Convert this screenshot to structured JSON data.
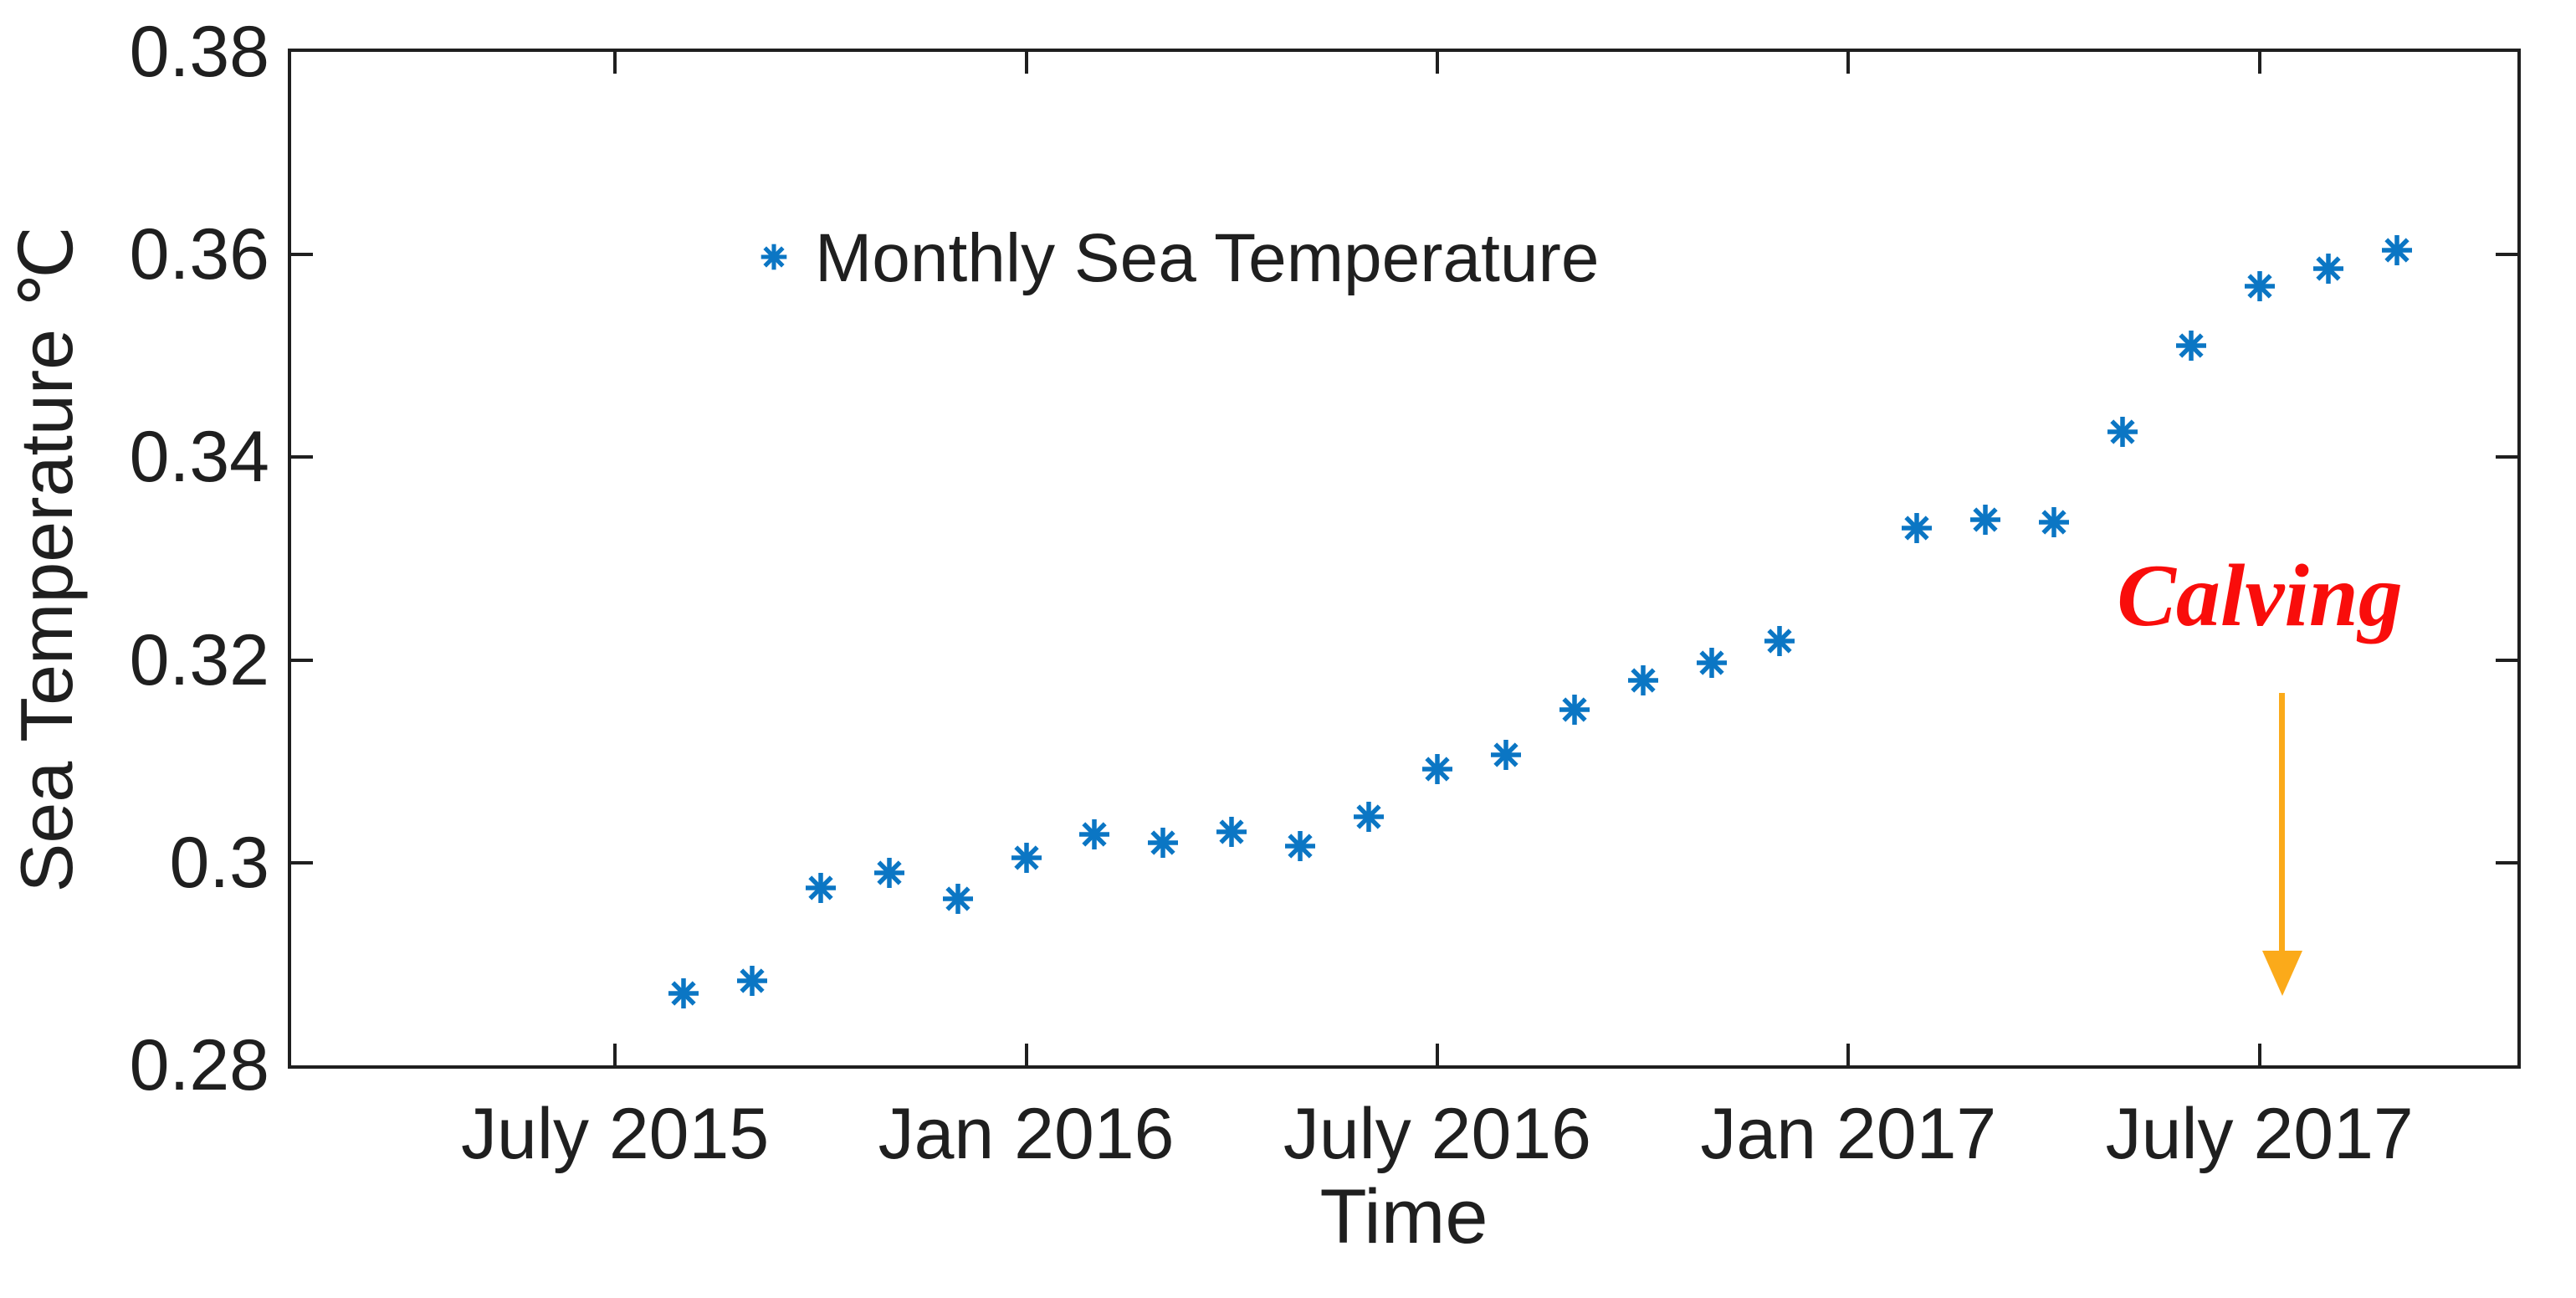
{
  "chart_data": {
    "type": "scatter",
    "title": "",
    "xlabel": "Time",
    "ylabel": "Sea Temperature ℃",
    "legend": {
      "label": "Monthly Sea Temperature",
      "position": "inside-top-left",
      "box": false
    },
    "marker": "asterisk",
    "marker_color": "#0b76c4",
    "axis_color": "#1f1f1f",
    "background_color": "#ffffff",
    "grid": false,
    "ylim": [
      0.28,
      0.38
    ],
    "y_ticks": [
      {
        "label": "0.38",
        "value": 0.38
      },
      {
        "label": "0.36",
        "value": 0.36
      },
      {
        "label": "0.34",
        "value": 0.34
      },
      {
        "label": "0.32",
        "value": 0.32
      },
      {
        "label": "0.3",
        "value": 0.3
      },
      {
        "label": "0.28",
        "value": 0.28
      }
    ],
    "x_ticks": [
      {
        "label": "July 2015",
        "m": -1
      },
      {
        "label": "Jan 2016",
        "m": 5
      },
      {
        "label": "July 2016",
        "m": 11
      },
      {
        "label": "Jan 2017",
        "m": 17
      },
      {
        "label": "July 2017",
        "m": 23
      }
    ],
    "points": [
      {
        "month": "Aug 2015",
        "m": 0,
        "value": 0.2871
      },
      {
        "month": "Sep 2015",
        "m": 1,
        "value": 0.2883
      },
      {
        "month": "Oct 2015",
        "m": 2,
        "value": 0.2975
      },
      {
        "month": "Nov 2015",
        "m": 3,
        "value": 0.299
      },
      {
        "month": "Dec 2015",
        "m": 4,
        "value": 0.2964
      },
      {
        "month": "Jan 2016",
        "m": 5,
        "value": 0.3005
      },
      {
        "month": "Feb 2016",
        "m": 6,
        "value": 0.3028
      },
      {
        "month": "Mar 2016",
        "m": 7,
        "value": 0.302
      },
      {
        "month": "Apr 2016",
        "m": 8,
        "value": 0.303
      },
      {
        "month": "May 2016",
        "m": 9,
        "value": 0.3016
      },
      {
        "month": "Jun 2016",
        "m": 10,
        "value": 0.3045
      },
      {
        "month": "Jul 2016",
        "m": 11,
        "value": 0.3092
      },
      {
        "month": "Aug 2016",
        "m": 12,
        "value": 0.3106
      },
      {
        "month": "Sep 2016",
        "m": 13,
        "value": 0.3151
      },
      {
        "month": "Oct 2016",
        "m": 14,
        "value": 0.318
      },
      {
        "month": "Nov 2016",
        "m": 15,
        "value": 0.3197
      },
      {
        "month": "Dec 2016",
        "m": 16,
        "value": 0.3219
      },
      {
        "month": "Feb 2017",
        "m": 18,
        "value": 0.333
      },
      {
        "month": "Mar 2017",
        "m": 19,
        "value": 0.3338
      },
      {
        "month": "Apr 2017",
        "m": 20,
        "value": 0.3336
      },
      {
        "month": "May 2017",
        "m": 21,
        "value": 0.3425
      },
      {
        "month": "Jun 2017",
        "m": 22,
        "value": 0.351
      },
      {
        "month": "Jul 2017",
        "m": 23,
        "value": 0.3569
      },
      {
        "month": "Aug 2017",
        "m": 24,
        "value": 0.3586
      },
      {
        "month": "Sep 2017",
        "m": 25,
        "value": 0.3604
      }
    ],
    "annotation": {
      "text": "Calving",
      "text_color": "#f90d0b",
      "arrow_color": "#fbaa1a",
      "arrow_direction": "down"
    }
  }
}
